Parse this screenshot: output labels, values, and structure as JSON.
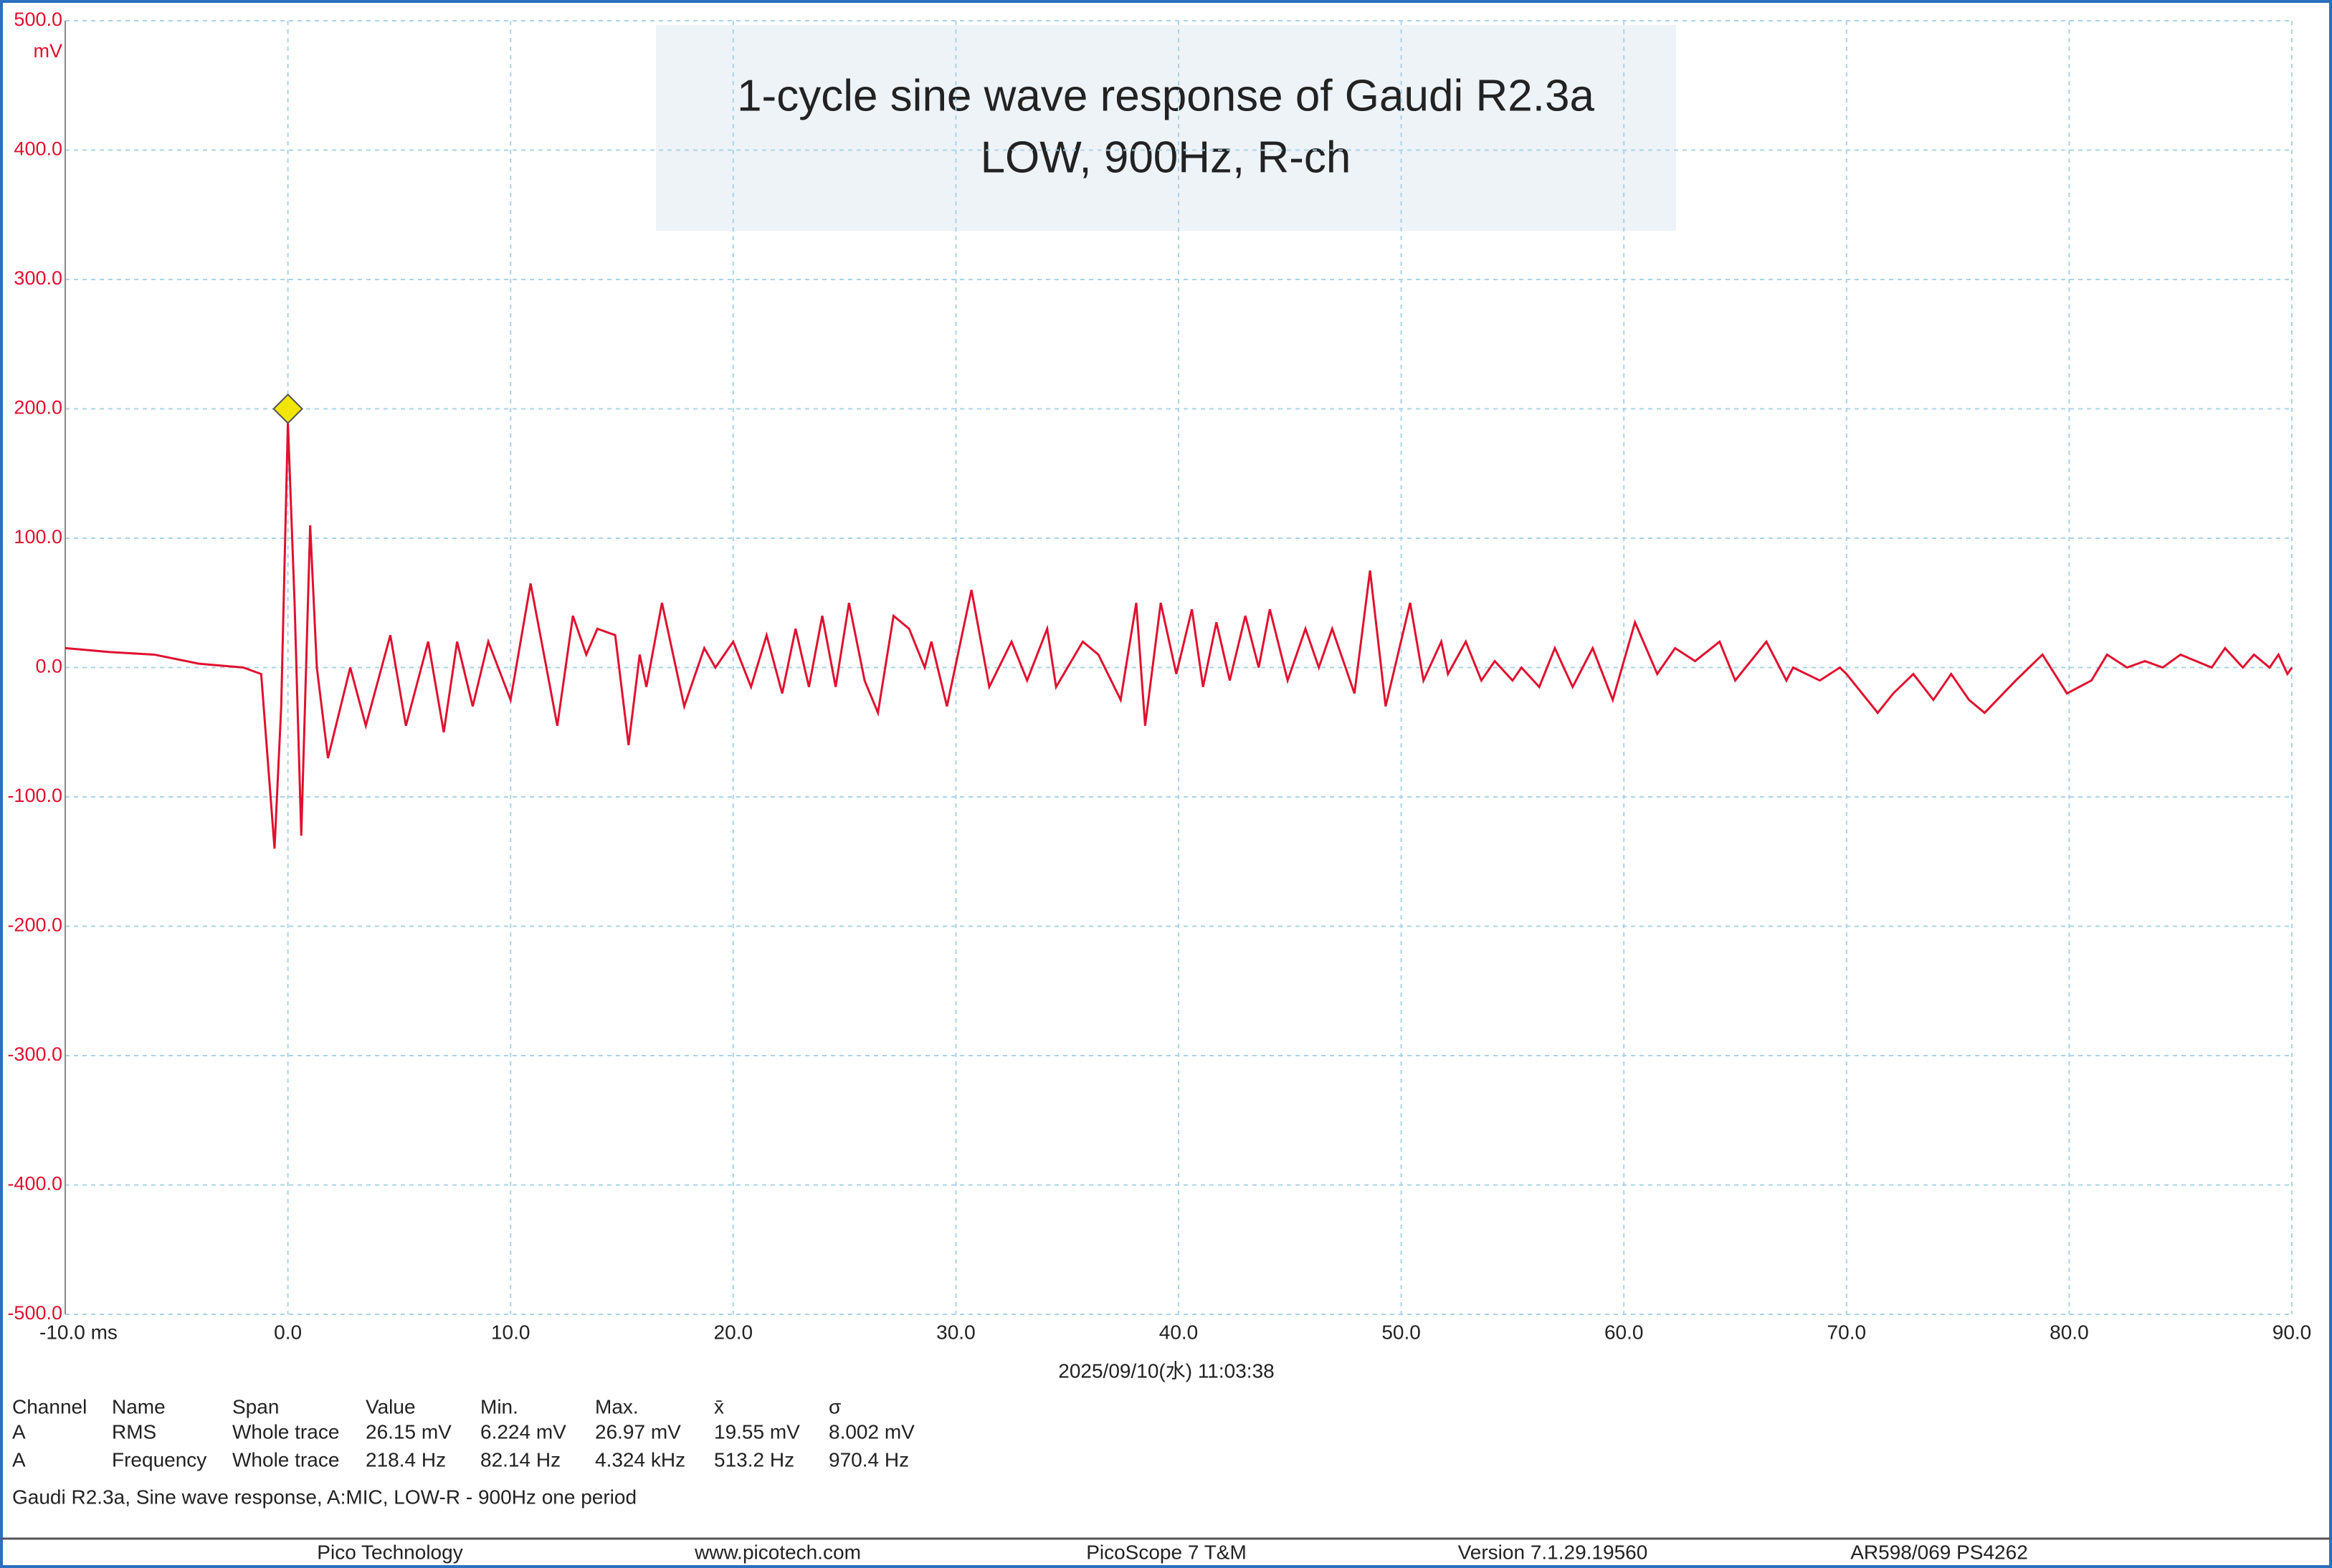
{
  "chart_data": {
    "type": "line",
    "title": "1-cycle sine wave response of Gaudi R2.3a",
    "subtitle": "LOW, 900Hz, R-ch",
    "y_unit": "mV",
    "x_label": "2025/09/10(水) 11:03:38",
    "color": "#e0102f",
    "grid": true,
    "xlim": [
      -10,
      90
    ],
    "ylim": [
      -500,
      500
    ],
    "xticks": [
      {
        "value": -10,
        "label": "-10.0 ms"
      },
      {
        "value": 0,
        "label": "0.0"
      },
      {
        "value": 10,
        "label": "10.0"
      },
      {
        "value": 20,
        "label": "20.0"
      },
      {
        "value": 30,
        "label": "30.0"
      },
      {
        "value": 40,
        "label": "40.0"
      },
      {
        "value": 50,
        "label": "50.0"
      },
      {
        "value": 60,
        "label": "60.0"
      },
      {
        "value": 70,
        "label": "70.0"
      },
      {
        "value": 80,
        "label": "80.0"
      },
      {
        "value": 90,
        "label": "90.0"
      }
    ],
    "yticks": [
      {
        "value": 500,
        "label": "500.0"
      },
      {
        "value": 400,
        "label": "400.0"
      },
      {
        "value": 300,
        "label": "300.0"
      },
      {
        "value": 200,
        "label": "200.0"
      },
      {
        "value": 100,
        "label": "100.0"
      },
      {
        "value": 0,
        "label": "0.0"
      },
      {
        "value": -100,
        "label": "-100.0"
      },
      {
        "value": -200,
        "label": "-200.0"
      },
      {
        "value": -300,
        "label": "-300.0"
      },
      {
        "value": -400,
        "label": "-400.0"
      },
      {
        "value": -500,
        "label": "-500.0"
      }
    ],
    "x": [
      -10,
      -8,
      -6,
      -4,
      -2,
      -1.2,
      -0.6,
      -0.3,
      0,
      0.3,
      0.6,
      1.0,
      1.3,
      1.8,
      2.8,
      3.5,
      4.6,
      5.3,
      6.3,
      7.0,
      7.6,
      8.3,
      9.0,
      10.0,
      10.9,
      12.1,
      12.8,
      13.4,
      13.9,
      14.7,
      15.3,
      15.8,
      16.1,
      16.8,
      17.8,
      18.7,
      19.2,
      20,
      20.8,
      21.5,
      22.2,
      22.8,
      23.4,
      24.0,
      24.6,
      25.2,
      25.9,
      26.5,
      27.2,
      27.9,
      28.6,
      28.9,
      29.6,
      30.7,
      31.5,
      32.5,
      33.2,
      34.1,
      34.5,
      35.7,
      36.4,
      37.4,
      38.1,
      38.5,
      39.2,
      39.9,
      40.6,
      41.1,
      41.7,
      42.3,
      43.0,
      43.6,
      44.1,
      44.9,
      45.7,
      46.3,
      46.9,
      47.9,
      48.6,
      49.3,
      50.4,
      51.0,
      51.8,
      52.1,
      52.9,
      53.6,
      54.2,
      55.0,
      55.4,
      56.2,
      56.9,
      57.7,
      58.6,
      59.5,
      60.5,
      61.5,
      62.3,
      63.2,
      64.3,
      65.0,
      66.4,
      67.3,
      67.6,
      68.8,
      69.7,
      70.0,
      71.4,
      72.1,
      73.0,
      73.9,
      74.7,
      75.5,
      76.2,
      77.6,
      78.2,
      78.8,
      79.9,
      81.0,
      81.7,
      82.6,
      83.4,
      84.2,
      85.0,
      86.4,
      87.0,
      87.8,
      88.3,
      89.0,
      89.4,
      89.8,
      90
    ],
    "values": [
      15,
      12,
      10,
      3,
      0,
      -5,
      -140,
      -30,
      190,
      50,
      -130,
      110,
      0,
      -70,
      0,
      -45,
      25,
      -45,
      20,
      -50,
      20,
      -30,
      20,
      -25,
      65,
      -45,
      40,
      10,
      30,
      25,
      -60,
      10,
      -15,
      50,
      -30,
      15,
      0,
      20,
      -15,
      25,
      -20,
      30,
      -15,
      40,
      -15,
      50,
      -10,
      -35,
      40,
      30,
      0,
      20,
      -30,
      60,
      -15,
      20,
      -10,
      30,
      -15,
      20,
      10,
      -25,
      50,
      -45,
      50,
      -5,
      45,
      -15,
      35,
      -10,
      40,
      0,
      45,
      -10,
      30,
      0,
      30,
      -20,
      75,
      -30,
      50,
      -10,
      20,
      -5,
      20,
      -10,
      5,
      -10,
      0,
      -15,
      15,
      -15,
      15,
      -25,
      35,
      -5,
      15,
      5,
      20,
      -10,
      20,
      -10,
      0,
      -10,
      0,
      -5,
      -35,
      -20,
      -5,
      -25,
      -5,
      -25,
      -35,
      -10,
      0,
      10,
      -20,
      -10,
      10,
      0,
      5,
      0,
      10,
      0,
      15,
      0,
      10,
      0,
      10,
      -5,
      0
    ]
  },
  "measurements": {
    "header": [
      "Channel",
      "Name",
      "Span",
      "Value",
      "Min.",
      "Max.",
      "x̄",
      "σ"
    ],
    "rows": [
      [
        "A",
        "RMS",
        "Whole trace",
        "26.15 mV",
        "6.224 mV",
        "26.97 mV",
        "19.55 mV",
        "8.002 mV"
      ],
      [
        "A",
        "Frequency",
        "Whole trace",
        "218.4 Hz",
        "82.14 Hz",
        "4.324 kHz",
        "513.2 Hz",
        "970.4 Hz"
      ]
    ]
  },
  "caption": "Gaudi R2.3a, Sine wave response, A:MIC, LOW-R - 900Hz one period",
  "status_bar": [
    "Pico Technology",
    "www.picotech.com",
    "PicoScope 7 T&M",
    "Version 7.1.29.19560",
    "AR598/069 PS4262"
  ]
}
